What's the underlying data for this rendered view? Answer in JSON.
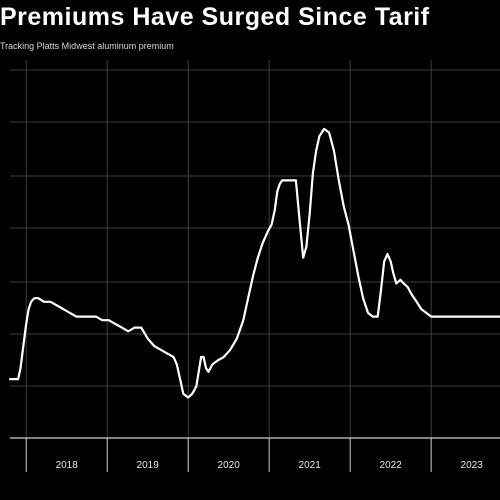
{
  "title": "Premiums Have Surged Since Tarif",
  "subtitle": "Tracking Platts Midwest aluminum premium",
  "colors": {
    "background": "#000000",
    "line": "#ffffff",
    "grid": "#3c3c3c",
    "text": "#ffffff"
  },
  "chart_data": {
    "type": "line",
    "title": "Premiums Have Surged Since Tarif",
    "subtitle": "Tracking Platts Midwest aluminum premium",
    "xlabel": "",
    "ylabel": "",
    "x_ticks": [
      "2018",
      "2019",
      "2020",
      "2021",
      "2022",
      "2023"
    ],
    "xlim": [
      2017.8,
      2023.85
    ],
    "ylim": [
      0,
      1
    ],
    "grid": true,
    "series": [
      {
        "x": [
          2017.8,
          2017.85,
          2017.9,
          2017.93,
          2017.97,
          2018.0,
          2018.03,
          2018.06,
          2018.1,
          2018.15,
          2018.22,
          2018.3,
          2018.38,
          2018.46,
          2018.54,
          2018.62,
          2018.7,
          2018.78,
          2018.86,
          2018.94,
          2019.02,
          2019.1,
          2019.18,
          2019.26,
          2019.34,
          2019.42,
          2019.5,
          2019.58,
          2019.66,
          2019.74,
          2019.82,
          2019.86,
          2019.9,
          2019.94,
          2020.0,
          2020.05,
          2020.1,
          2020.13,
          2020.16,
          2020.19,
          2020.22,
          2020.25,
          2020.3,
          2020.36,
          2020.44,
          2020.52,
          2020.6,
          2020.68,
          2020.74,
          2020.8,
          2020.86,
          2020.92,
          2020.98,
          2021.03,
          2021.07,
          2021.1,
          2021.13,
          2021.16,
          2021.2,
          2021.28,
          2021.33,
          2021.38,
          2021.42,
          2021.46,
          2021.5,
          2021.54,
          2021.58,
          2021.62,
          2021.68,
          2021.74,
          2021.8,
          2021.86,
          2021.92,
          2021.98,
          2022.04,
          2022.1,
          2022.16,
          2022.22,
          2022.28,
          2022.34,
          2022.38,
          2022.42,
          2022.46,
          2022.5,
          2022.53,
          2022.57,
          2022.62,
          2022.66,
          2022.71,
          2022.76,
          2022.82,
          2022.88,
          2022.94,
          2023.0,
          2023.06,
          2023.12,
          2023.18,
          2023.22,
          2023.27,
          2023.34,
          2023.42,
          2023.5,
          2023.58,
          2023.66,
          2023.74,
          2023.8,
          2023.85
        ],
        "y": [
          0.16,
          0.16,
          0.16,
          0.19,
          0.26,
          0.31,
          0.35,
          0.37,
          0.38,
          0.38,
          0.37,
          0.37,
          0.36,
          0.35,
          0.34,
          0.33,
          0.33,
          0.33,
          0.33,
          0.32,
          0.32,
          0.31,
          0.3,
          0.29,
          0.3,
          0.3,
          0.27,
          0.25,
          0.24,
          0.23,
          0.22,
          0.2,
          0.16,
          0.12,
          0.11,
          0.12,
          0.14,
          0.18,
          0.22,
          0.22,
          0.19,
          0.18,
          0.2,
          0.21,
          0.22,
          0.24,
          0.27,
          0.32,
          0.38,
          0.44,
          0.49,
          0.53,
          0.56,
          0.58,
          0.62,
          0.67,
          0.69,
          0.7,
          0.7,
          0.7,
          0.7,
          0.58,
          0.49,
          0.52,
          0.61,
          0.72,
          0.78,
          0.82,
          0.84,
          0.83,
          0.78,
          0.7,
          0.63,
          0.58,
          0.51,
          0.44,
          0.38,
          0.34,
          0.33,
          0.33,
          0.4,
          0.48,
          0.5,
          0.48,
          0.45,
          0.42,
          0.43,
          0.42,
          0.41,
          0.39,
          0.37,
          0.35,
          0.34,
          0.33,
          0.33,
          0.33,
          0.33,
          0.33,
          0.33,
          0.33,
          0.33,
          0.33,
          0.33,
          0.33,
          0.33,
          0.33,
          0.33
        ]
      }
    ]
  }
}
